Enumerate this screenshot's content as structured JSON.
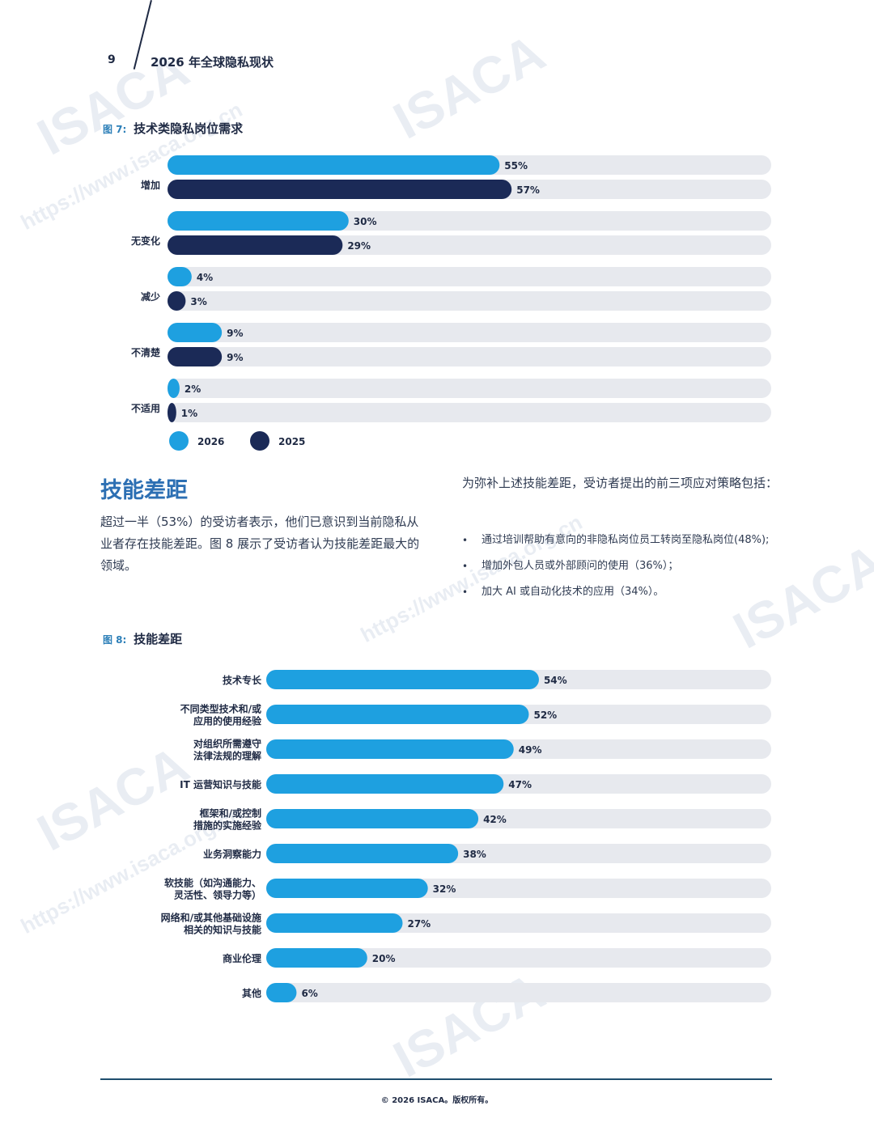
{
  "header": {
    "page_number": "9",
    "running_title": "2026 年全球隐私现状"
  },
  "watermarks": [
    "ISACA",
    "https://www.isaca.org.cn",
    "ISACA",
    "https://www.isaca.org.cn",
    "ISACA",
    "https://www.isaca.org.cn",
    "ISACA",
    "ISACA"
  ],
  "figure7": {
    "number": "图 7:",
    "title": "技术类隐私岗位需求"
  },
  "figure8": {
    "number": "图 8:",
    "title": "技能差距"
  },
  "section": {
    "heading": "技能差距",
    "paragraph": "超过一半（53%）的受访者表示，他们已意识到当前隐私从业者存在技能差距。图 8 展示了受访者认为技能差距最大的领域。",
    "strategies_intro": "为弥补上述技能差距，受访者提出的前三项应对策略包括：",
    "strategies": [
      "通过培训帮助有意向的非隐私岗位员工转岗至隐私岗位(48%);",
      "增加外包人员或外部顾问的使用（36%）；",
      "加大 AI 或自动化技术的应用（34%）。"
    ]
  },
  "colors": {
    "light_blue": "#1ea0e0",
    "dark_navy": "#1b2a57",
    "track": "#e7e9ee",
    "heading_blue": "#2c6fb3"
  },
  "chart_data": [
    {
      "type": "bar",
      "orientation": "horizontal",
      "title": "技术类隐私岗位需求",
      "categories": [
        "增加",
        "无变化",
        "减少",
        "不清楚",
        "不适用"
      ],
      "series": [
        {
          "name": "2026",
          "color": "#1ea0e0",
          "values": [
            55,
            30,
            4,
            9,
            2
          ]
        },
        {
          "name": "2025",
          "color": "#1b2a57",
          "values": [
            57,
            29,
            3,
            9,
            1
          ]
        }
      ],
      "value_suffix": "%",
      "xlim": [
        0,
        100
      ],
      "legend": "bottom-left",
      "grid": false
    },
    {
      "type": "bar",
      "orientation": "horizontal",
      "title": "技能差距",
      "categories": [
        "技术专长",
        "不同类型技术和/或\n应用的使用经验",
        "对组织所需遵守\n法律法规的理解",
        "IT 运营知识与技能",
        "框架和/或控制\n措施的实施经验",
        "业务洞察能力",
        "软技能（如沟通能力、\n灵活性、领导力等）",
        "网络和/或其他基础设施\n相关的知识与技能",
        "商业伦理",
        "其他"
      ],
      "series": [
        {
          "color": "#1ea0e0",
          "values": [
            54,
            52,
            49,
            47,
            42,
            38,
            32,
            27,
            20,
            6
          ]
        }
      ],
      "value_suffix": "%",
      "xlim": [
        0,
        100
      ],
      "grid": false
    }
  ],
  "footer": {
    "copyright": "© 2026 ISACA。版权所有。"
  }
}
